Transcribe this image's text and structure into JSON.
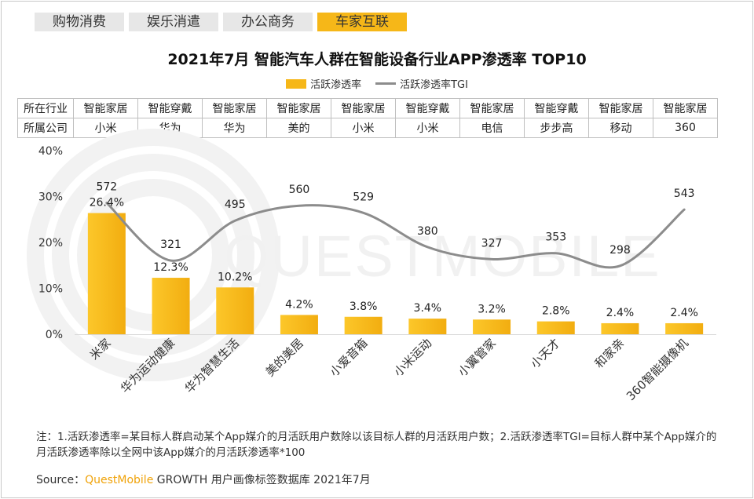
{
  "tabs": [
    {
      "label": "购物消费",
      "active": false
    },
    {
      "label": "娱乐消遣",
      "active": false
    },
    {
      "label": "办公商务",
      "active": false
    },
    {
      "label": "车家互联",
      "active": true
    }
  ],
  "colors": {
    "bar": "#f6b718",
    "line": "#8c8c8c",
    "accent": "#f6b718"
  },
  "table": {
    "row1_header": "所在行业",
    "row2_header": "所属公司",
    "industries": [
      "智能家居",
      "智能穿戴",
      "智能家居",
      "智能家居",
      "智能家居",
      "智能穿戴",
      "智能家居",
      "智能穿戴",
      "智能家居",
      "智能家居"
    ],
    "companies": [
      "小米",
      "华为",
      "华为",
      "美的",
      "小米",
      "小米",
      "电信",
      "步步高",
      "移动",
      "360"
    ]
  },
  "chart_data": {
    "type": "bar",
    "title": "2021年7月 智能汽车人群在智能设备行业APP渗透率 TOP10",
    "categories": [
      "米家",
      "华为运动健康",
      "华为智慧生活",
      "美的美居",
      "小爱音箱",
      "小米运动",
      "小翼管家",
      "小天才",
      "和家亲",
      "360智能摄像机"
    ],
    "series": [
      {
        "name": "活跃渗透率",
        "type": "bar",
        "values": [
          26.4,
          12.3,
          10.2,
          4.2,
          3.8,
          3.4,
          3.2,
          2.8,
          2.4,
          2.4
        ],
        "labels": [
          "26.4%",
          "12.3%",
          "10.2%",
          "4.2%",
          "3.8%",
          "3.4%",
          "3.2%",
          "2.8%",
          "2.4%",
          "2.4%"
        ]
      },
      {
        "name": "活跃渗透率TGI",
        "type": "line",
        "values": [
          572,
          321,
          495,
          560,
          529,
          380,
          327,
          353,
          298,
          543
        ]
      }
    ],
    "yticks": [
      "0%",
      "10%",
      "20%",
      "30%",
      "40%"
    ],
    "ylim": [
      0,
      40
    ],
    "tgi_range": [
      0,
      800
    ],
    "xlabel": "",
    "ylabel": ""
  },
  "note": "注：1.活跃渗透率=某目标人群启动某个App媒介的月活跃用户数除以该目标人群的月活跃用户数；2.活跃渗透率TGI=目标人群中某个App媒介的月活跃渗透率除以全网中该App媒介的月活跃渗透率*100",
  "source": {
    "prefix": "Source：",
    "brand": "QuestMobile",
    "suffix": " GROWTH 用户画像标签数据库 2021年7月"
  },
  "watermark": "QUESTMOBILE"
}
